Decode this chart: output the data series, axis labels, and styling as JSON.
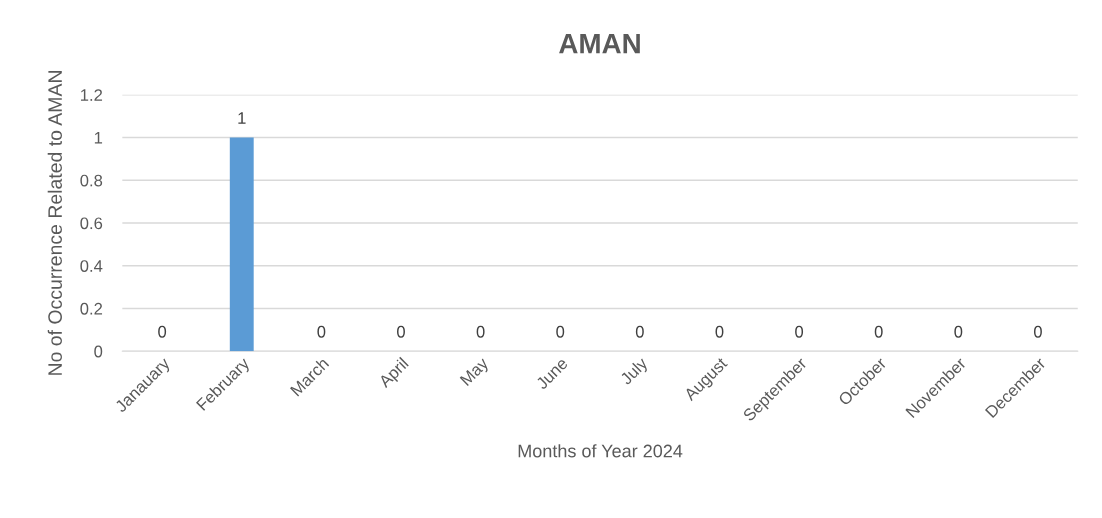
{
  "chart_data": {
    "type": "bar",
    "title": "AMAN",
    "xlabel": "Months of Year 2024",
    "ylabel": "No of Occurrence Related to AMAN",
    "categories": [
      "Janauary",
      "February",
      "March",
      "April",
      "May",
      "June",
      "July",
      "August",
      "September",
      "October",
      "November",
      "December"
    ],
    "values": [
      0,
      1,
      0,
      0,
      0,
      0,
      0,
      0,
      0,
      0,
      0,
      0
    ],
    "color": "#5b9bd5",
    "ylim": [
      0,
      1.2
    ],
    "yticks": [
      0,
      0.2,
      0.4,
      0.6,
      0.8,
      1,
      1.2
    ],
    "grid": "y",
    "legend": false,
    "data_labels": true
  }
}
